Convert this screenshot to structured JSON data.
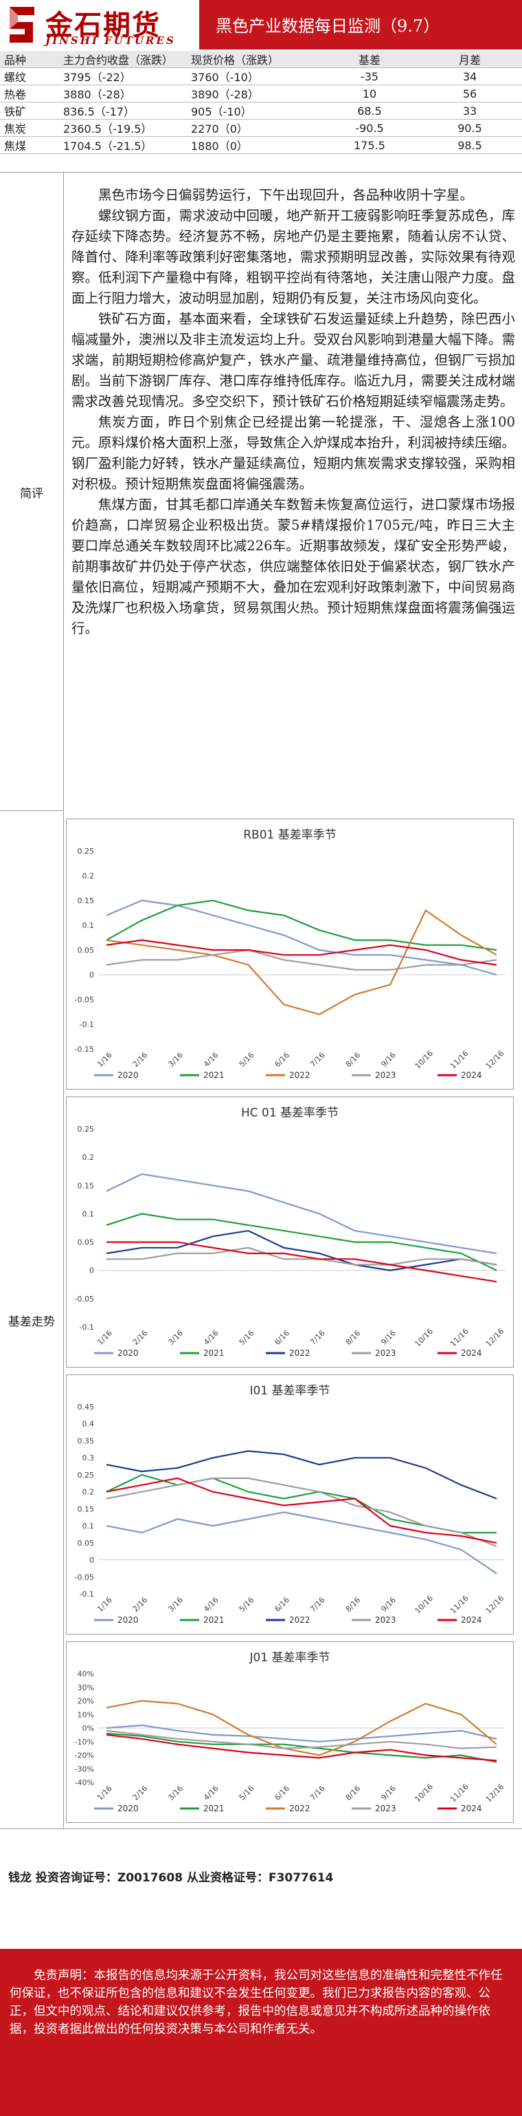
{
  "header": {
    "logo_cn": "金石期货",
    "logo_en": "JINSHI FUTURES",
    "title": "黑色产业数据每日监测（9.7）"
  },
  "price_table": {
    "headers": [
      "品种",
      "主力合约收盘（涨跌）",
      "现货价格（涨跌）",
      "基差",
      "月差"
    ],
    "rows": [
      [
        "螺纹",
        "3795（-22）",
        "3760（-10）",
        "-35",
        "34"
      ],
      [
        "热卷",
        "3880（-28）",
        "3890（-28）",
        "10",
        "56"
      ],
      [
        "铁矿",
        "836.5（-17）",
        "905（-10）",
        "68.5",
        "33"
      ],
      [
        "焦炭",
        "2360.5（-19.5）",
        "2270（0）",
        "-90.5",
        "90.5"
      ],
      [
        "焦煤",
        "1704.5（-21.5）",
        "1880（0）",
        "175.5",
        "98.5"
      ]
    ]
  },
  "comment": {
    "label": "简评",
    "paragraphs": [
      "黑色市场今日偏弱势运行，下午出现回升，各品种收阴十字星。",
      "螺纹钢方面，需求波动中回暖，地产新开工疲弱影响旺季复苏成色，库存延续下降态势。经济复苏不畅，房地产仍是主要拖累，随着认房不认贷、降首付、降利率等政策利好密集落地，需求预期明显改善，实际效果有待观察。低利润下产量稳中有降，粗钢平控尚有待落地，关注唐山限产力度。盘面上行阻力增大，波动明显加剧，短期仍有反复，关注市场风向变化。",
      "铁矿石方面，基本面来看，全球铁矿石发运量延续上升趋势，除巴西小幅减量外，澳洲以及非主流发运均上升。受双台风影响到港量大幅下降。需求端，前期短期检修高炉复产，铁水产量、疏港量维持高位，但钢厂亏损加剧。当前下游钢厂库存、港口库存维持低库存。临近九月，需要关注成材端需求改善兑现情况。多空交织下，预计铁矿石价格短期延续窄幅震荡走势。",
      "焦炭方面，昨日个别焦企已经提出第一轮提涨，干、湿熄各上涨100元。原料煤价格大面积上涨，导致焦企入炉煤成本抬升，利润被持续压缩。钢厂盈利能力好转，铁水产量延续高位，短期内焦炭需求支撑较强，采购相对积极。预计短期焦炭盘面将偏强震荡。",
      "焦煤方面，甘其毛都口岸通关车数暂未恢复高位运行，进口蒙煤市场报价趋高，口岸贸易企业积极出货。蒙5#精煤报价1705元/吨，昨日三大主要口岸总通关车数较周环比减226车。近期事故频发，煤矿安全形势严峻，前期事故矿井仍处于停产状态，供应端整体依旧处于偏紧状态，钢厂铁水产量依旧高位，短期减产预期不大，叠加在宏观利好政策刺激下，中间贸易商及洗煤厂也积极入场拿货，贸易氛围火热。预计短期焦煤盘面将震荡偏强运行。"
    ]
  },
  "basis_label": "基差走势",
  "chart_data": [
    {
      "type": "line",
      "title": "RB01 基差率季节",
      "x": [
        "1/16",
        "2/16",
        "3/16",
        "4/16",
        "5/16",
        "6/16",
        "7/16",
        "8/16",
        "9/16",
        "10/16",
        "11/16",
        "12/16"
      ],
      "yticks": [
        "0.25",
        "0.2",
        "0.15",
        "0.1",
        "0.05",
        "0",
        "-0.05",
        "-0.1",
        "-0.15"
      ],
      "ylim": [
        -0.15,
        0.25
      ],
      "ytick_values": [
        0.25,
        0.2,
        0.15,
        0.1,
        0.05,
        0,
        -0.05,
        -0.1,
        -0.15
      ],
      "series": [
        {
          "name": "2020",
          "color": "#7f98cc",
          "values": [
            0.12,
            0.15,
            0.14,
            0.12,
            0.1,
            0.08,
            0.05,
            0.04,
            0.04,
            0.03,
            0.02,
            0.0
          ]
        },
        {
          "name": "2021",
          "color": "#1f9f3b",
          "values": [
            0.07,
            0.11,
            0.14,
            0.15,
            0.13,
            0.12,
            0.09,
            0.07,
            0.07,
            0.06,
            0.06,
            0.05
          ]
        },
        {
          "name": "2022",
          "color": "#d27a2c",
          "values": [
            0.07,
            0.06,
            0.05,
            0.04,
            0.02,
            -0.06,
            -0.08,
            -0.04,
            -0.02,
            0.13,
            0.08,
            0.04
          ]
        },
        {
          "name": "2023",
          "color": "#9e9e9e",
          "values": [
            0.02,
            0.03,
            0.03,
            0.04,
            0.05,
            0.03,
            0.02,
            0.01,
            0.01,
            0.02,
            0.02,
            0.03
          ]
        },
        {
          "name": "2024",
          "color": "#e0001a",
          "values": [
            0.06,
            0.07,
            0.06,
            0.05,
            0.05,
            0.04,
            0.04,
            0.05,
            0.06,
            0.05,
            0.03,
            0.02
          ]
        }
      ]
    },
    {
      "type": "line",
      "title": "HC 01 基差率季节",
      "x": [
        "1/16",
        "2/16",
        "3/16",
        "4/16",
        "5/16",
        "6/16",
        "7/16",
        "8/16",
        "9/16",
        "10/16",
        "11/16",
        "12/16"
      ],
      "yticks": [
        "0.25",
        "0.2",
        "0.15",
        "0.1",
        "0.05",
        "0",
        "-0.05",
        "-0.1"
      ],
      "ylim": [
        -0.1,
        0.25
      ],
      "ytick_values": [
        0.25,
        0.2,
        0.15,
        0.1,
        0.05,
        0,
        -0.05,
        -0.1
      ],
      "series": [
        {
          "name": "2020",
          "color": "#7f98cc",
          "values": [
            0.14,
            0.17,
            0.16,
            0.15,
            0.14,
            0.12,
            0.1,
            0.07,
            0.06,
            0.05,
            0.04,
            0.03
          ]
        },
        {
          "name": "2021",
          "color": "#1f9f3b",
          "values": [
            0.08,
            0.1,
            0.09,
            0.09,
            0.08,
            0.07,
            0.06,
            0.05,
            0.05,
            0.04,
            0.03,
            0.0
          ]
        },
        {
          "name": "2022",
          "color": "#1a3a8f",
          "values": [
            0.03,
            0.04,
            0.04,
            0.06,
            0.07,
            0.04,
            0.03,
            0.01,
            0.0,
            0.01,
            0.02,
            0.01
          ]
        },
        {
          "name": "2023",
          "color": "#9e9e9e",
          "values": [
            0.02,
            0.02,
            0.03,
            0.03,
            0.04,
            0.02,
            0.02,
            0.01,
            0.01,
            0.02,
            0.02,
            0.01
          ]
        },
        {
          "name": "2024",
          "color": "#e0001a",
          "values": [
            0.05,
            0.05,
            0.05,
            0.04,
            0.03,
            0.03,
            0.02,
            0.02,
            0.01,
            0.0,
            -0.01,
            -0.02
          ]
        }
      ]
    },
    {
      "type": "line",
      "title": "I01 基差率季节",
      "x": [
        "1/16",
        "2/16",
        "3/16",
        "4/16",
        "5/16",
        "6/16",
        "7/16",
        "8/16",
        "9/16",
        "10/16",
        "11/16",
        "12/16"
      ],
      "yticks": [
        "0.45",
        "0.4",
        "0.35",
        "0.3",
        "0.25",
        "0.2",
        "0.15",
        "0.1",
        "0.05",
        "0",
        "-0.05",
        "-0.1"
      ],
      "ylim": [
        -0.1,
        0.45
      ],
      "ytick_values": [
        0.45,
        0.4,
        0.35,
        0.3,
        0.25,
        0.2,
        0.15,
        0.1,
        0.05,
        0,
        -0.05,
        -0.1
      ],
      "series": [
        {
          "name": "2020",
          "color": "#7f98cc",
          "values": [
            0.1,
            0.08,
            0.12,
            0.1,
            0.12,
            0.14,
            0.12,
            0.1,
            0.08,
            0.06,
            0.03,
            -0.04
          ]
        },
        {
          "name": "2021",
          "color": "#1f9f3b",
          "values": [
            0.2,
            0.25,
            0.22,
            0.24,
            0.2,
            0.18,
            0.2,
            0.18,
            0.12,
            0.1,
            0.08,
            0.08
          ]
        },
        {
          "name": "2022",
          "color": "#1a3a8f",
          "values": [
            0.28,
            0.26,
            0.27,
            0.3,
            0.32,
            0.31,
            0.28,
            0.3,
            0.3,
            0.27,
            0.22,
            0.18
          ]
        },
        {
          "name": "2023",
          "color": "#9e9e9e",
          "values": [
            0.18,
            0.2,
            0.22,
            0.24,
            0.24,
            0.22,
            0.2,
            0.16,
            0.14,
            0.1,
            0.08,
            0.04
          ]
        },
        {
          "name": "2024",
          "color": "#e0001a",
          "values": [
            0.2,
            0.22,
            0.24,
            0.2,
            0.18,
            0.16,
            0.17,
            0.18,
            0.1,
            0.08,
            0.07,
            0.05
          ]
        }
      ]
    },
    {
      "type": "line",
      "title": "J01 基差率季节",
      "x": [
        "1/16",
        "2/16",
        "3/16",
        "4/16",
        "5/16",
        "6/16",
        "7/16",
        "8/16",
        "9/16",
        "10/16",
        "11/16",
        "12/16"
      ],
      "yticks": [
        "40%",
        "30%",
        "20%",
        "10%",
        "0%",
        "-10%",
        "-20%",
        "-30%",
        "-40%"
      ],
      "ylim": [
        -40,
        40
      ],
      "ytick_values": [
        40,
        30,
        20,
        10,
        0,
        -10,
        -20,
        -30,
        -40
      ],
      "series": [
        {
          "name": "2020",
          "color": "#7f98cc",
          "values": [
            0,
            2,
            -2,
            -5,
            -6,
            -8,
            -10,
            -8,
            -6,
            -4,
            -2,
            -8
          ]
        },
        {
          "name": "2021",
          "color": "#1f9f3b",
          "values": [
            -4,
            -6,
            -10,
            -12,
            -12,
            -12,
            -15,
            -18,
            -20,
            -22,
            -20,
            -25
          ]
        },
        {
          "name": "2022",
          "color": "#d27a2c",
          "values": [
            15,
            20,
            18,
            10,
            -5,
            -15,
            -20,
            -10,
            5,
            18,
            10,
            -12
          ]
        },
        {
          "name": "2023",
          "color": "#9e9e9e",
          "values": [
            -2,
            -5,
            -8,
            -10,
            -12,
            -15,
            -14,
            -12,
            -10,
            -12,
            -15,
            -14
          ]
        },
        {
          "name": "2024",
          "color": "#e0001a",
          "values": [
            -5,
            -8,
            -12,
            -15,
            -18,
            -20,
            -22,
            -18,
            -16,
            -20,
            -22,
            -24
          ]
        }
      ]
    }
  ],
  "footer": {
    "author": "钱龙 投资咨询证号：Z0017608 从业资格证号：F3077614",
    "disclaimer": "免责声明：本报告的信息均来源于公开资料，我公司对这些信息的准确性和完整性不作任何保证，也不保证所包含的信息和建议不会发生任何变更。我们已力求报告内容的客观、公正，但文中的观点、结论和建议仅供参考，报告中的信息或意见并不构成所述品种的操作依据，投资者据此做出的任何投资决策与本公司和作者无关。"
  },
  "colors": {
    "brand_red": "#c4161c",
    "logo_red": "#b00000"
  }
}
